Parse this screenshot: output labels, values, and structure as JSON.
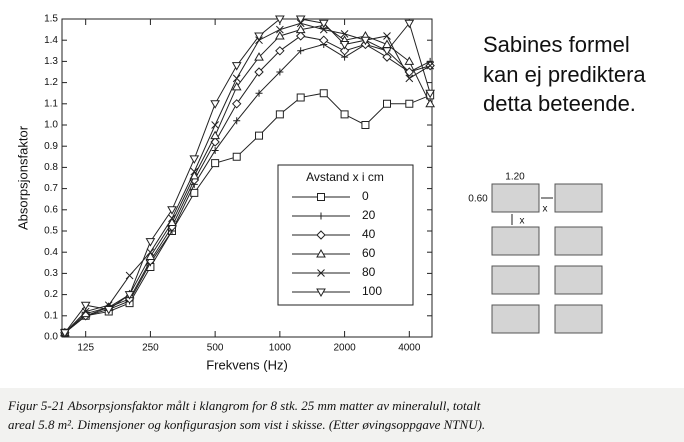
{
  "chart_data": {
    "type": "line",
    "xscale": "log",
    "xlabel": "Frekvens (Hz)",
    "ylabel": "Absorpsjonsfaktor",
    "x": [
      100,
      125,
      160,
      200,
      250,
      315,
      400,
      500,
      630,
      800,
      1000,
      1250,
      1600,
      2000,
      2500,
      3150,
      4000,
      5000
    ],
    "xlim": [
      97,
      5100
    ],
    "xticks": [
      125,
      250,
      500,
      1000,
      2000,
      4000
    ],
    "ylim": [
      0,
      1.5
    ],
    "yticks": [
      {
        "value": 0,
        "label": "0.0"
      },
      0.1,
      0.2,
      0.3,
      0.4,
      0.5,
      0.6,
      0.7,
      0.8,
      0.9,
      {
        "value": 1,
        "label": "1.0"
      },
      1.1,
      1.2,
      1.3,
      1.4,
      1.5
    ],
    "legend_title": "Avstand x i cm",
    "series": [
      {
        "name": "0",
        "color": "#222",
        "marker": "square",
        "values": [
          0.02,
          0.1,
          0.12,
          0.16,
          0.33,
          0.5,
          0.68,
          0.82,
          0.85,
          0.95,
          1.05,
          1.13,
          1.15,
          1.05,
          1.0,
          1.1,
          1.1,
          1.14
        ]
      },
      {
        "name": "20",
        "color": "#222",
        "marker": "plus",
        "values": [
          0.02,
          0.1,
          0.13,
          0.17,
          0.35,
          0.5,
          0.72,
          0.88,
          1.02,
          1.15,
          1.25,
          1.35,
          1.38,
          1.32,
          1.38,
          1.35,
          1.25,
          1.3
        ]
      },
      {
        "name": "40",
        "color": "#222",
        "marker": "diamond",
        "values": [
          0.02,
          0.1,
          0.14,
          0.18,
          0.36,
          0.52,
          0.74,
          0.92,
          1.1,
          1.25,
          1.35,
          1.42,
          1.4,
          1.35,
          1.38,
          1.32,
          1.25,
          1.28
        ]
      },
      {
        "name": "60",
        "color": "#222",
        "marker": "triangle",
        "values": [
          0.02,
          0.11,
          0.14,
          0.2,
          0.38,
          0.54,
          0.76,
          0.95,
          1.18,
          1.32,
          1.42,
          1.45,
          1.47,
          1.4,
          1.42,
          1.38,
          1.3,
          1.1
        ]
      },
      {
        "name": "80",
        "color": "#222",
        "marker": "x",
        "values": [
          0.02,
          0.12,
          0.15,
          0.29,
          0.4,
          0.56,
          0.78,
          1.0,
          1.22,
          1.4,
          1.45,
          1.48,
          1.45,
          1.43,
          1.4,
          1.42,
          1.22,
          1.28
        ]
      },
      {
        "name": "100",
        "color": "#222",
        "marker": "triangle-down",
        "values": [
          0.02,
          0.15,
          0.13,
          0.2,
          0.45,
          0.6,
          0.84,
          1.1,
          1.28,
          1.42,
          1.5,
          1.5,
          1.48,
          1.38,
          1.4,
          1.35,
          1.48,
          1.15
        ]
      }
    ],
    "annotation": [
      "Sabines formel",
      "kan ej prediktera",
      "detta beteende."
    ],
    "sketch": {
      "width_label": "1.20",
      "height_label": "0.60",
      "gap_x_label": "x",
      "gap_y_label": "x"
    },
    "caption": [
      "Figur 5-21  Absorpsjonsfaktor målt i klangrom for 8 stk. 25 mm matter av mineralull, totalt",
      "areal 5.8 m². Dimensjoner og konfigurasjon som vist i skisse. (Etter øvingsoppgave NTNU)."
    ]
  }
}
